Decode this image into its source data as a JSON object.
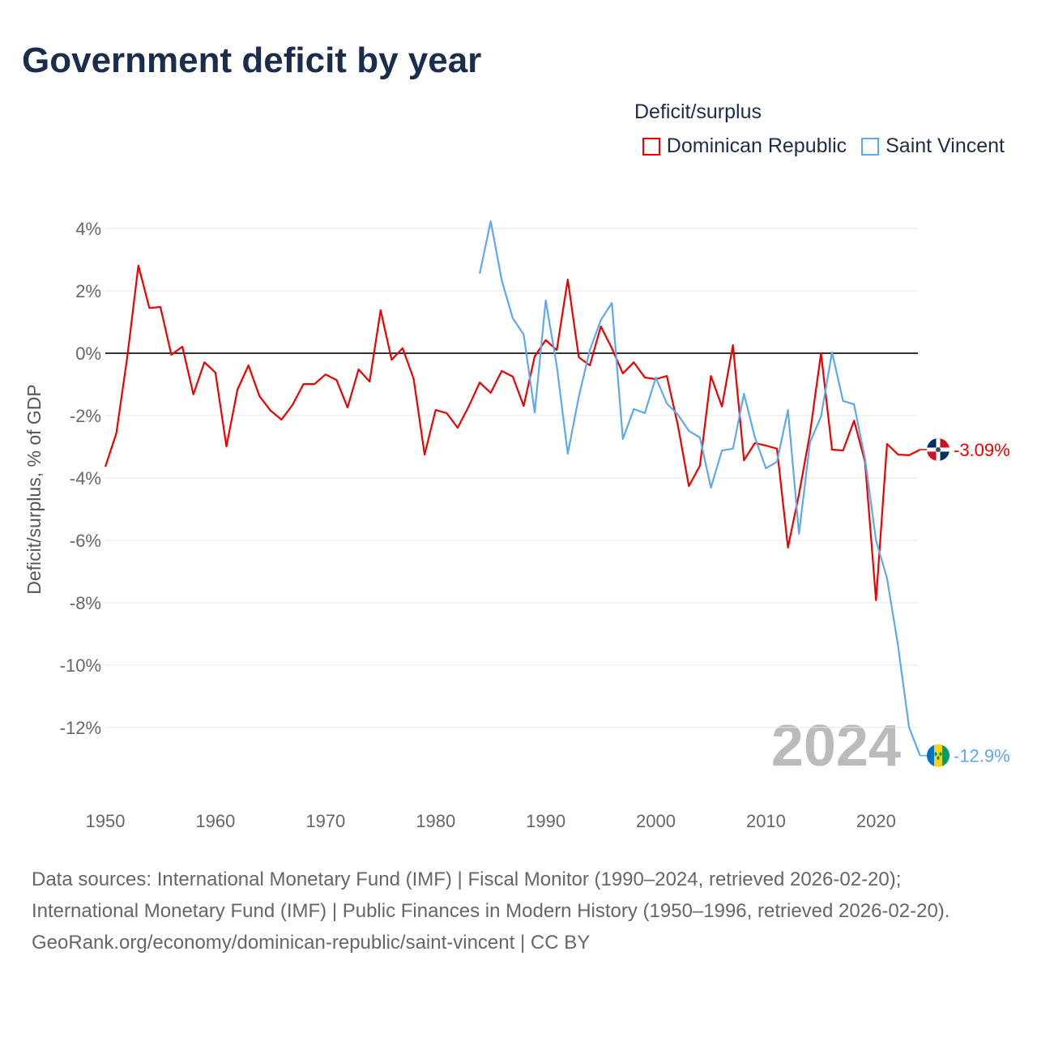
{
  "title": "Government deficit by year",
  "legend": {
    "title": "Deficit/surplus"
  },
  "watermark_year": "2024",
  "footer": {
    "sources": "Data sources: International Monetary Fund (IMF) | Fiscal Monitor (1990–2024, retrieved 2026-02-20); International Monetary Fund (IMF) | Public Finances in Modern History (1950–1996, retrieved 2026-02-20).",
    "credit": "GeoRank.org/economy/dominican-republic/saint-vincent | CC BY"
  },
  "chart_data": {
    "type": "line",
    "title": "Government deficit by year",
    "xlabel": "",
    "ylabel": "Deficit/surplus, % of GDP",
    "xlim": [
      1950,
      2024
    ],
    "ylim": [
      -13,
      4.5
    ],
    "yticks": [
      4,
      2,
      0,
      -2,
      -4,
      -6,
      -8,
      -10,
      -12
    ],
    "ytick_labels": [
      "4%",
      "2%",
      "0%",
      "-2%",
      "-4%",
      "-6%",
      "-8%",
      "-10%",
      "-12%"
    ],
    "xticks": [
      1950,
      1960,
      1970,
      1980,
      1990,
      2000,
      2010,
      2020
    ],
    "xtick_labels": [
      "1950",
      "1960",
      "1970",
      "1980",
      "1990",
      "2000",
      "2010",
      "2020"
    ],
    "grid": true,
    "legend_position": "top-right",
    "series": [
      {
        "name": "Dominican Republic",
        "color": "#ee0000",
        "end_label": "-3.09%",
        "flag": "dominican-republic",
        "start_year": 1950,
        "values": [
          -3.64,
          -2.57,
          -0.1,
          2.81,
          1.45,
          1.48,
          -0.05,
          0.21,
          -1.32,
          -0.29,
          -0.62,
          -2.99,
          -1.17,
          -0.39,
          -1.38,
          -1.84,
          -2.13,
          -1.66,
          -0.99,
          -0.99,
          -0.68,
          -0.86,
          -1.74,
          -0.52,
          -0.91,
          1.38,
          -0.21,
          0.16,
          -0.81,
          -3.25,
          -1.82,
          -1.92,
          -2.39,
          -1.71,
          -0.94,
          -1.27,
          -0.57,
          -0.75,
          -1.69,
          -0.1,
          0.42,
          0.1,
          2.36,
          -0.13,
          -0.39,
          0.86,
          0.16,
          -0.65,
          -0.29,
          -0.78,
          -0.83,
          -0.73,
          -2.31,
          -4.26,
          -3.61,
          -0.73,
          -1.71,
          0.26,
          -3.43,
          -2.88,
          -2.96,
          -3.06,
          -6.23,
          -4.52,
          -2.57,
          0.0,
          -3.09,
          -3.12,
          -2.16,
          -3.48,
          -7.92,
          -2.91,
          -3.25,
          -3.27,
          -3.09
        ]
      },
      {
        "name": "Saint Vincent",
        "color": "#5ea9ec",
        "end_label": "-12.9%",
        "flag": "saint-vincent",
        "start_year": 1984,
        "values": [
          2.55,
          4.23,
          2.34,
          1.12,
          0.6,
          -1.9,
          1.69,
          -0.4,
          -3.22,
          -1.4,
          0.1,
          1.06,
          1.61,
          -2.75,
          -1.79,
          -1.92,
          -0.78,
          -1.61,
          -1.97,
          -2.49,
          -2.7,
          -4.31,
          -3.12,
          -3.06,
          -1.3,
          -2.7,
          -3.69,
          -3.48,
          -1.82,
          -5.79,
          -2.86,
          -2.03,
          0.03,
          -1.53,
          -1.64,
          -3.38,
          -6.0,
          -7.22,
          -9.38,
          -12.0,
          -12.9
        ]
      }
    ]
  }
}
